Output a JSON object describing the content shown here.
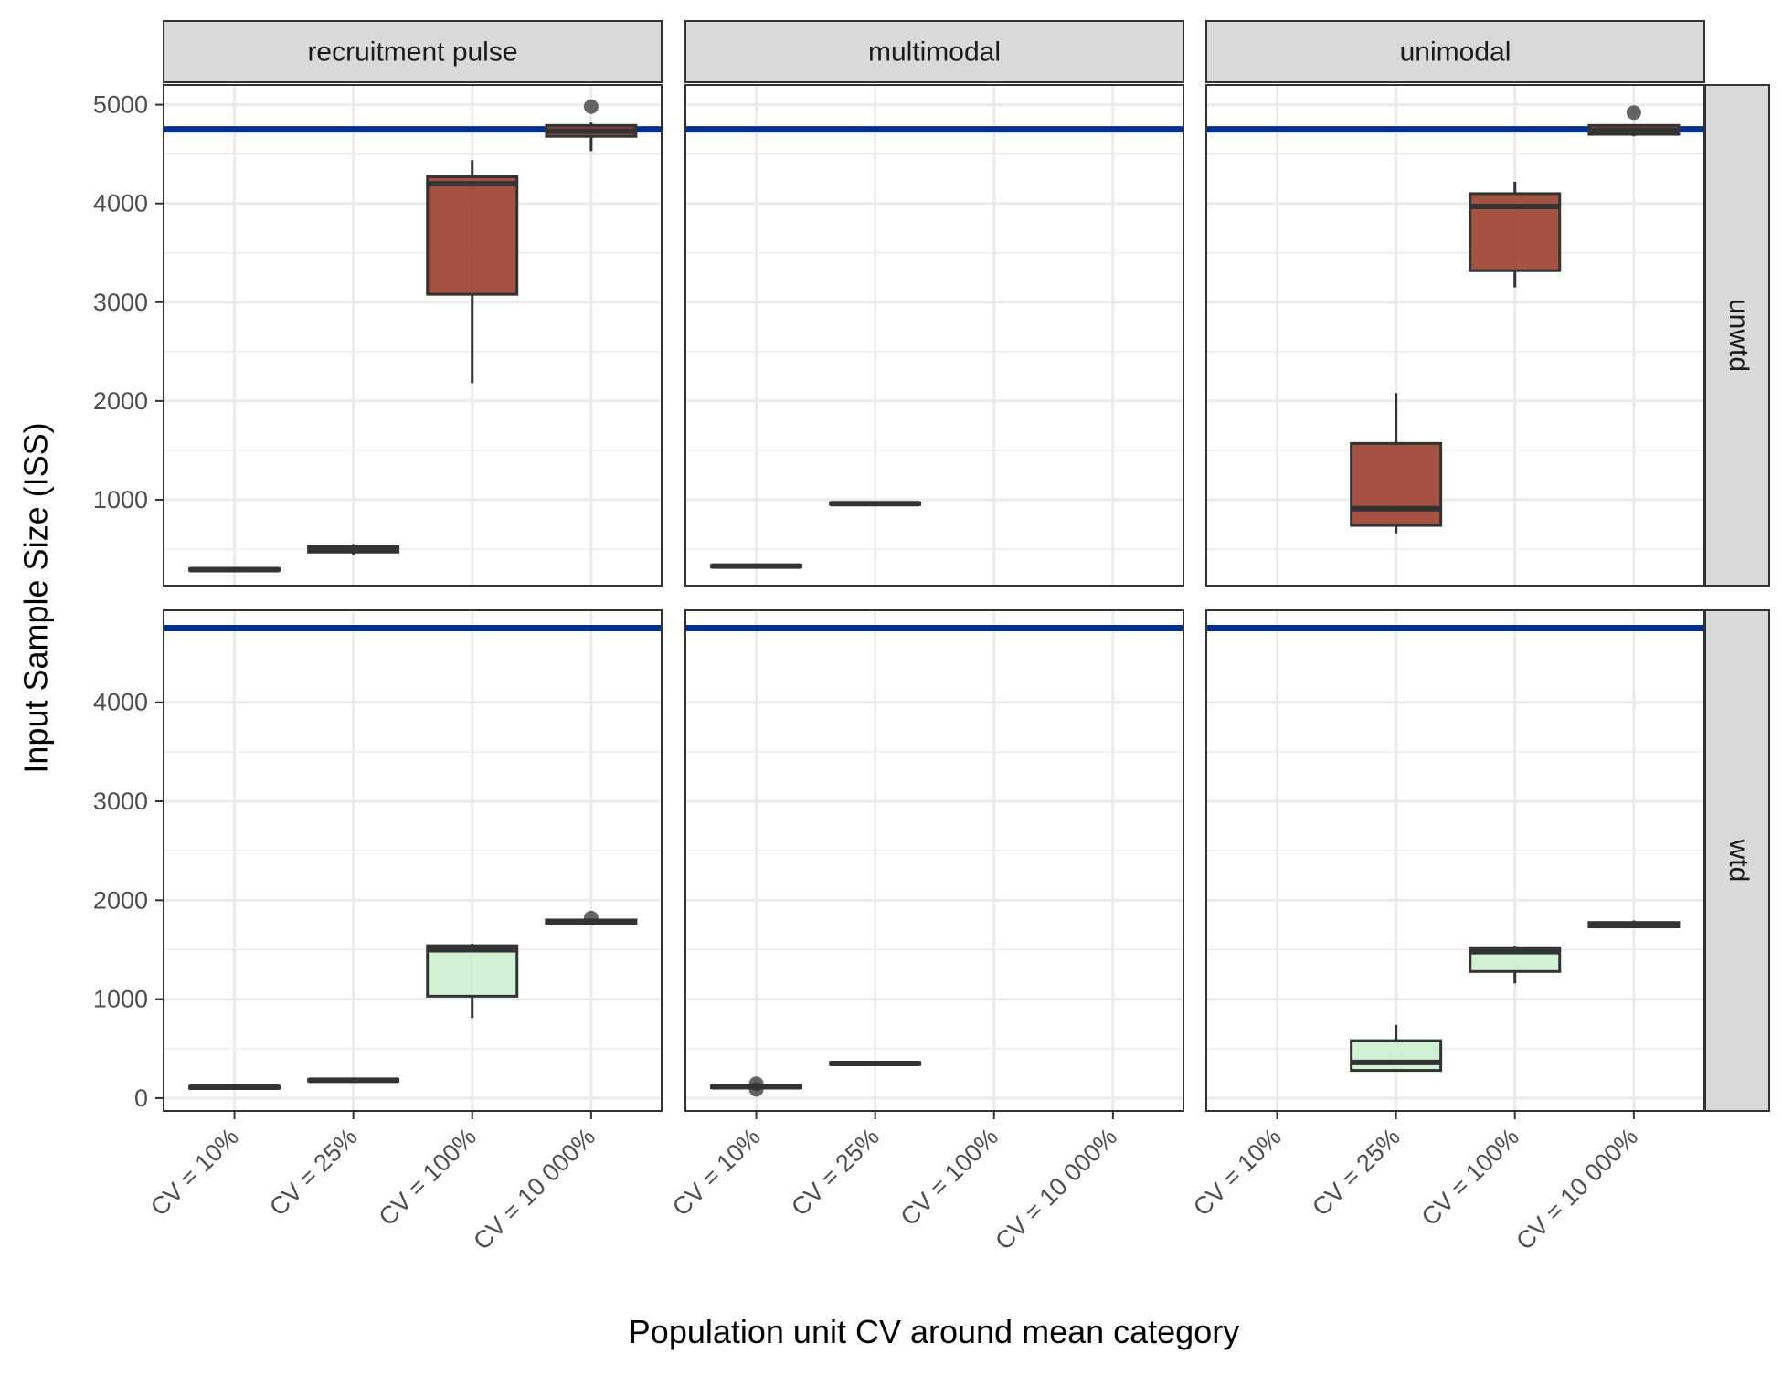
{
  "chart_data": {
    "type": "box",
    "xlabel": "Population unit CV around mean category",
    "ylabel": "Input Sample Size (ISS)",
    "categories": [
      "CV = 10%",
      "CV = 25%",
      "CV = 100%",
      "CV = 10 000%"
    ],
    "col_facets": [
      "recruitment pulse",
      "multimodal",
      "unimodal"
    ],
    "row_facets": [
      "unwtd",
      "wtd"
    ],
    "colors": {
      "unwtd_fill": "#9a3f2c",
      "wtd_fill": "#cdeecf",
      "reference_line": "#00308f",
      "box_outline": "#333333",
      "strip_bg": "#d9d9d9",
      "grid": "#ebebeb"
    },
    "rows": [
      {
        "name": "unwtd",
        "ylim": [
          130,
          5200
        ],
        "yticks": [
          1000,
          2000,
          3000,
          4000,
          5000
        ],
        "reference_line": 4750,
        "boxes": [
          {
            "col": 0,
            "cat": 0,
            "min": 275,
            "q1": 285,
            "median": 292,
            "q3": 300,
            "max": 310,
            "outliers": []
          },
          {
            "col": 0,
            "cat": 1,
            "min": 440,
            "q1": 470,
            "median": 495,
            "q3": 525,
            "max": 550,
            "outliers": []
          },
          {
            "col": 0,
            "cat": 2,
            "min": 2180,
            "q1": 3080,
            "median": 4200,
            "q3": 4270,
            "max": 4440,
            "outliers": []
          },
          {
            "col": 0,
            "cat": 3,
            "min": 4530,
            "q1": 4680,
            "median": 4730,
            "q3": 4790,
            "max": 4820,
            "outliers": [
              4980
            ]
          },
          {
            "col": 1,
            "cat": 0,
            "min": 310,
            "q1": 320,
            "median": 328,
            "q3": 336,
            "max": 345,
            "outliers": []
          },
          {
            "col": 1,
            "cat": 1,
            "min": 940,
            "q1": 952,
            "median": 960,
            "q3": 968,
            "max": 975,
            "outliers": []
          },
          {
            "col": 2,
            "cat": 1,
            "min": 660,
            "q1": 740,
            "median": 910,
            "q3": 1570,
            "max": 2080,
            "outliers": []
          },
          {
            "col": 2,
            "cat": 2,
            "min": 3150,
            "q1": 3320,
            "median": 3970,
            "q3": 4100,
            "max": 4220,
            "outliers": []
          },
          {
            "col": 2,
            "cat": 3,
            "min": 4680,
            "q1": 4700,
            "median": 4740,
            "q3": 4790,
            "max": 4800,
            "outliers": [
              4920
            ]
          }
        ]
      },
      {
        "name": "wtd",
        "ylim": [
          -130,
          4930
        ],
        "yticks": [
          0,
          1000,
          2000,
          3000,
          4000
        ],
        "reference_line": 4750,
        "boxes": [
          {
            "col": 0,
            "cat": 0,
            "min": 92,
            "q1": 100,
            "median": 110,
            "q3": 118,
            "max": 126,
            "outliers": []
          },
          {
            "col": 0,
            "cat": 1,
            "min": 165,
            "q1": 172,
            "median": 180,
            "q3": 188,
            "max": 196,
            "outliers": []
          },
          {
            "col": 0,
            "cat": 2,
            "min": 810,
            "q1": 1030,
            "median": 1500,
            "q3": 1540,
            "max": 1560,
            "outliers": []
          },
          {
            "col": 0,
            "cat": 3,
            "min": 1760,
            "q1": 1765,
            "median": 1785,
            "q3": 1800,
            "max": 1810,
            "outliers": [
              1820
            ]
          },
          {
            "col": 1,
            "cat": 0,
            "min": 95,
            "q1": 105,
            "median": 115,
            "q3": 125,
            "max": 135,
            "outliers": [
              88,
              145
            ]
          },
          {
            "col": 1,
            "cat": 1,
            "min": 335,
            "q1": 340,
            "median": 350,
            "q3": 360,
            "max": 370,
            "outliers": []
          },
          {
            "col": 2,
            "cat": 1,
            "min": 270,
            "q1": 280,
            "median": 360,
            "q3": 580,
            "max": 740,
            "outliers": []
          },
          {
            "col": 2,
            "cat": 2,
            "min": 1160,
            "q1": 1280,
            "median": 1480,
            "q3": 1520,
            "max": 1540,
            "outliers": []
          },
          {
            "col": 2,
            "cat": 3,
            "min": 1720,
            "q1": 1730,
            "median": 1750,
            "q3": 1775,
            "max": 1795,
            "outliers": []
          }
        ]
      }
    ]
  }
}
